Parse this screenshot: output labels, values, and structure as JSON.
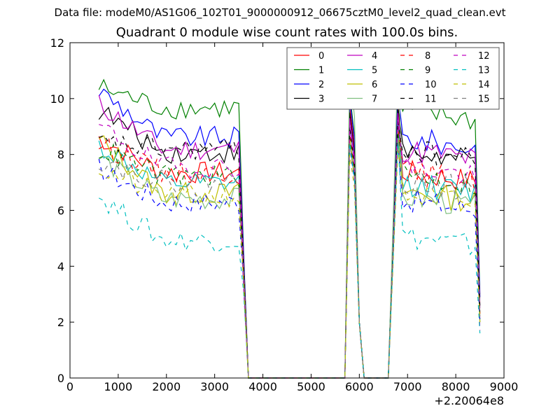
{
  "chart_data": {
    "type": "line",
    "suptitle": "Data file: modeM0/AS1G06_102T01_9000000912_06675cztM0_level2_quad_clean.evt",
    "title": "Quadrant 0 module wise count rates with 100.0s bins.",
    "xlabel": "",
    "ylabel": "",
    "x_offset_label": "+2.20064e8",
    "xlim": [
      0,
      9000
    ],
    "ylim": [
      0,
      12
    ],
    "x_ticks": [
      "0",
      "1000",
      "2000",
      "3000",
      "4000",
      "5000",
      "6000",
      "7000",
      "8000",
      "9000"
    ],
    "y_ticks": [
      "0",
      "2",
      "4",
      "6",
      "8",
      "10",
      "12"
    ],
    "grid": false,
    "legend_position": "top-right",
    "legend_columns": 4,
    "segments": [
      {
        "x_start": 600,
        "x_end": 3500,
        "step": 100
      },
      {
        "x_start": 5800,
        "x_end": 5900,
        "step": 100
      },
      {
        "x_start": 6800,
        "x_end": 8500,
        "step": 100
      }
    ],
    "series": [
      {
        "name": "0",
        "color": "#ff0000",
        "dash": "solid",
        "level1": 8.6,
        "level2": 7.0,
        "peak": 9.7,
        "end": 2.3
      },
      {
        "name": "1",
        "color": "#008000",
        "dash": "solid",
        "level1": 10.4,
        "level2": 9.2,
        "peak": 10.2,
        "end": 3.0
      },
      {
        "name": "2",
        "color": "#0000ff",
        "dash": "solid",
        "level1": 10.3,
        "level2": 8.2,
        "peak": 10.0,
        "end": 2.9
      },
      {
        "name": "3",
        "color": "#000000",
        "dash": "solid",
        "level1": 9.6,
        "level2": 7.7,
        "peak": 9.5,
        "end": 2.6
      },
      {
        "name": "4",
        "color": "#bf00bf",
        "dash": "solid",
        "level1": 9.8,
        "level2": 7.8,
        "peak": 9.3,
        "end": 2.5
      },
      {
        "name": "5",
        "color": "#00bfbf",
        "dash": "solid",
        "level1": 8.3,
        "level2": 6.6,
        "peak": 9.0,
        "end": 2.0
      },
      {
        "name": "6",
        "color": "#bfbf00",
        "dash": "solid",
        "level1": 8.5,
        "level2": 6.3,
        "peak": 8.6,
        "end": 2.0
      },
      {
        "name": "7",
        "color": "#7fbf7f",
        "dash": "solid",
        "level1": 7.9,
        "level2": 6.1,
        "peak": 11.0,
        "end": 2.2
      },
      {
        "name": "8",
        "color": "#ff0000",
        "dash": "dashed",
        "level1": 8.4,
        "level2": 7.0,
        "peak": 8.8,
        "end": 2.3
      },
      {
        "name": "9",
        "color": "#008000",
        "dash": "dashed",
        "level1": 8.2,
        "level2": 6.9,
        "peak": 8.6,
        "end": 2.1
      },
      {
        "name": "10",
        "color": "#0000ff",
        "dash": "dashed",
        "level1": 7.5,
        "level2": 6.0,
        "peak": 8.3,
        "end": 2.0
      },
      {
        "name": "11",
        "color": "#000000",
        "dash": "dashed",
        "level1": 8.4,
        "level2": 7.8,
        "peak": 9.0,
        "end": 2.4
      },
      {
        "name": "12",
        "color": "#bf00bf",
        "dash": "dashed",
        "level1": 9.0,
        "level2": 7.2,
        "peak": 9.0,
        "end": 1.7
      },
      {
        "name": "13",
        "color": "#00bfbf",
        "dash": "dashed",
        "level1": 6.5,
        "level2": 4.7,
        "peak": 8.4,
        "end": 1.6
      },
      {
        "name": "14",
        "color": "#bfbf00",
        "dash": "dashed",
        "level1": 7.5,
        "level2": 6.2,
        "peak": 8.0,
        "end": 2.0
      },
      {
        "name": "15",
        "color": "#808080",
        "dash": "dashed",
        "level1": 7.8,
        "level2": 6.7,
        "peak": 8.4,
        "end": 2.2
      }
    ]
  }
}
